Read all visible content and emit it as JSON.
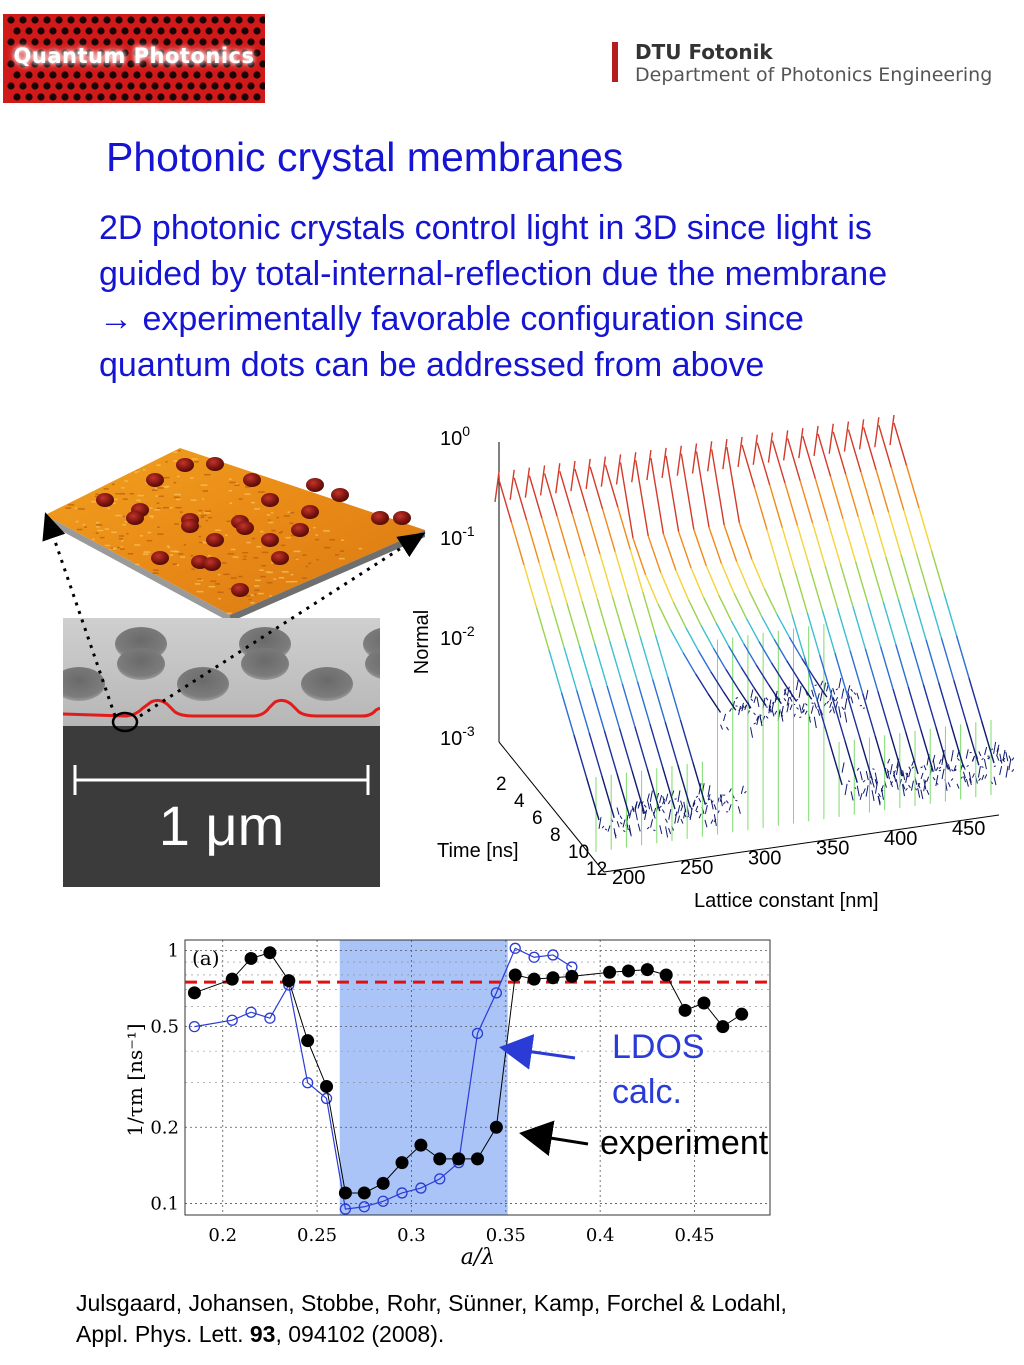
{
  "logos": {
    "left_text": "Quantum Photonics",
    "right_line1": "DTU Fotonik",
    "right_line2": "Department of Photonics Engineering"
  },
  "title": "Photonic crystal membranes",
  "body_lines": [
    "2D photonic crystals control light in 3D since light is",
    "guided by total-internal-reflection due the membrane",
    "→ experimentally favorable configuration since",
    "quantum dots can be addressed from above"
  ],
  "sem_scale_label": "1 μm",
  "colors": {
    "title_blue": "#1414d2",
    "highlight": "#aac4f7",
    "dashed_line": "#e01010",
    "ldos": "#2a3bd6",
    "experiment": "#000000",
    "profile_red": "#e21b1b"
  },
  "chart_data": [
    {
      "type": "line",
      "panel": "3d-decay-curves",
      "ylabel": "Normal",
      "yticks": [
        "10^0",
        "10^-1",
        "10^-2",
        "10^-3"
      ],
      "ytick_base": "10",
      "ytick_exps": [
        "0",
        "-1",
        "-2",
        "-3"
      ],
      "time_label": "Time [ns]",
      "time_ticks": [
        "2",
        "4",
        "6",
        "8",
        "10",
        "12"
      ],
      "xlabel": "Lattice constant [nm]",
      "xticks": [
        "200",
        "250",
        "300",
        "350",
        "400",
        "450"
      ],
      "lattice_constants_nm": [
        200,
        210,
        220,
        230,
        240,
        250,
        260,
        270,
        280,
        290,
        300,
        310,
        320,
        330,
        340,
        350,
        360,
        370,
        380,
        390,
        400,
        410,
        420,
        430,
        440,
        450,
        460
      ],
      "gap_range_nm": [
        280,
        350
      ]
    },
    {
      "type": "scatter",
      "panel": "a",
      "panel_label": "(a)",
      "xlabel": "a/λ",
      "ylabel": "1/τm [ns⁻¹]",
      "yscale": "log",
      "xlim": [
        0.18,
        0.49
      ],
      "ylim": [
        0.09,
        1.1
      ],
      "xticks": [
        "0.2",
        "0.25",
        "0.3",
        "0.35",
        "0.4",
        "0.45"
      ],
      "yticks": [
        "1",
        "0.5",
        "0.2",
        "0.1"
      ],
      "band_gap": [
        0.262,
        0.351
      ],
      "reference_level": 0.75,
      "series": [
        {
          "name": "experiment",
          "x": [
            0.185,
            0.205,
            0.215,
            0.225,
            0.235,
            0.245,
            0.255,
            0.265,
            0.275,
            0.285,
            0.295,
            0.305,
            0.315,
            0.325,
            0.335,
            0.345,
            0.355,
            0.365,
            0.375,
            0.385,
            0.405,
            0.415,
            0.425,
            0.435,
            0.445,
            0.455,
            0.465,
            0.475
          ],
          "y": [
            0.68,
            0.77,
            0.93,
            0.98,
            0.76,
            0.44,
            0.29,
            0.11,
            0.11,
            0.12,
            0.145,
            0.17,
            0.15,
            0.15,
            0.15,
            0.2,
            0.8,
            0.77,
            0.78,
            0.79,
            0.82,
            0.83,
            0.84,
            0.8,
            0.58,
            0.62,
            0.5,
            0.56
          ]
        },
        {
          "name": "LDOS calc.",
          "x": [
            0.185,
            0.205,
            0.215,
            0.225,
            0.235,
            0.245,
            0.255,
            0.265,
            0.275,
            0.285,
            0.295,
            0.305,
            0.315,
            0.325,
            0.335,
            0.345,
            0.355,
            0.365,
            0.375,
            0.385
          ],
          "y": [
            0.5,
            0.53,
            0.57,
            0.54,
            0.73,
            0.3,
            0.26,
            0.095,
            0.097,
            0.102,
            0.11,
            0.115,
            0.125,
            0.145,
            0.47,
            0.68,
            1.02,
            0.94,
            0.96,
            0.86
          ]
        }
      ],
      "annotations": [
        "LDOS calc.",
        "experiment"
      ]
    }
  ],
  "citation": {
    "line1": "Julsgaard, Johansen, Stobbe, Rohr, Sünner, Kamp, Forchel & Lodahl,",
    "line2_pre": "Appl. Phys. Lett. ",
    "line2_bold": "93",
    "line2_post": ", 094102 (2008)."
  }
}
